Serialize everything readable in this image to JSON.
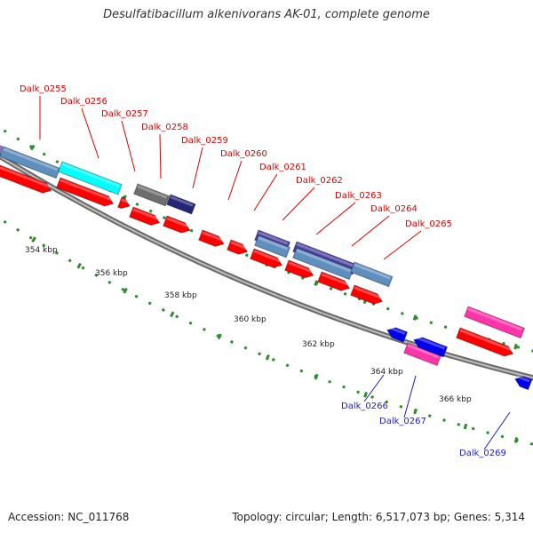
{
  "title": "Desulfatibacillum alkenivorans AK-01, complete genome",
  "footer": {
    "accession": "Accession: NC_011768",
    "topology": "Topology: circular; Length: 6,517,073 bp; Genes: 5,314"
  },
  "colors": {
    "backbone": "#8c8c8c",
    "tick": "#2e8b2e",
    "cds_forward": "#ff0000",
    "cds_reverse": "#0000ee",
    "label_forward": "#dd0000",
    "label_reverse": "#1a1acc",
    "steelblue_gene": "#5f8fbf",
    "cyan_gene": "#00ffff",
    "gray_gene": "#6e6e6e",
    "navy_gene": "#24247a",
    "slate_gene": "#4b3fa0",
    "pink_gene": "#ff33aa",
    "purple_gene": "#9966cc"
  },
  "scale_labels": [
    "354 kbp",
    "356 kbp",
    "358 kbp",
    "360 kbp",
    "362 kbp",
    "364 kbp",
    "366 kbp"
  ],
  "gene_labels": [
    "Dalk_0255",
    "Dalk_0256",
    "Dalk_0257",
    "Dalk_0258",
    "Dalk_0259",
    "Dalk_0260",
    "Dalk_0261",
    "Dalk_0262",
    "Dalk_0263",
    "Dalk_0264",
    "Dalk_0265",
    "Dalk_0266",
    "Dalk_0267",
    "Dalk_0269"
  ]
}
